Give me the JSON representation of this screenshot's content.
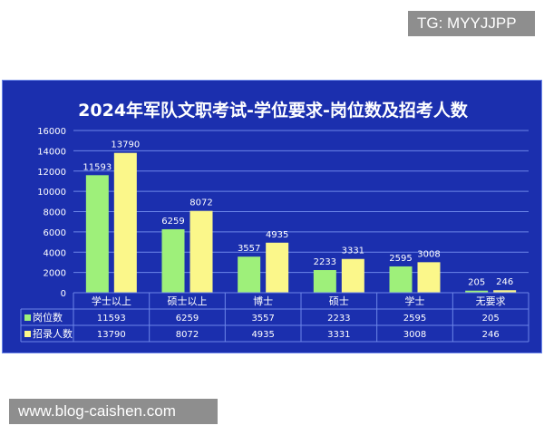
{
  "watermark_top": "TG: MYYJJPP",
  "watermark_bottom": "www.blog-caishen.com",
  "colors": {
    "background": "#1b2fae",
    "series1": "#9ef07a",
    "series2": "#fbf78a",
    "grid": "#6c86e8"
  },
  "chart_data": {
    "type": "bar",
    "title": "2024年军队文职考试-学位要求-岗位数及招考人数",
    "categories": [
      "学士以上",
      "硕士以上",
      "博士",
      "硕士",
      "学士",
      "无要求"
    ],
    "series": [
      {
        "name": "岗位数",
        "values": [
          11593,
          6259,
          3557,
          2233,
          2595,
          205
        ]
      },
      {
        "name": "招录人数",
        "values": [
          13790,
          8072,
          4935,
          3331,
          3008,
          246
        ]
      }
    ],
    "ylim": [
      0,
      16000
    ],
    "yticks": [
      0,
      2000,
      4000,
      6000,
      8000,
      10000,
      12000,
      14000,
      16000
    ],
    "grid": true,
    "legend": "data-table-below"
  }
}
